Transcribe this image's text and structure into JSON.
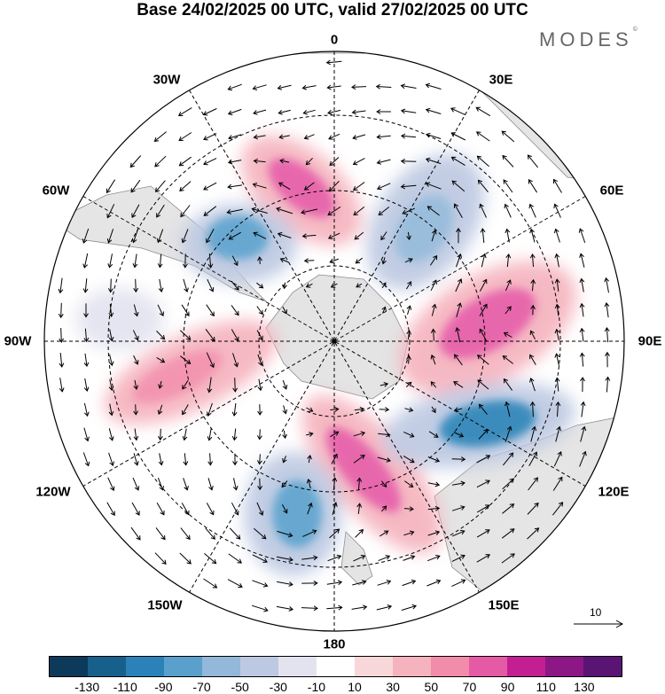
{
  "title": "Base 24/02/2025 00 UTC, valid 27/02/2025 00 UTC",
  "logo": "MODES",
  "logo_mark": "©",
  "longitude_labels": {
    "top": "0",
    "lon_30e": "30E",
    "lon_60e": "60E",
    "lon_90e": "90E",
    "lon_120e": "120E",
    "lon_150e": "150E",
    "bottom": "180",
    "lon_150w": "150W",
    "lon_120w": "120W",
    "lon_90w": "90W",
    "lon_60w": "60W",
    "lon_30w": "30W"
  },
  "reference_vector": "10",
  "colorbar": {
    "colors": [
      "#0d3a5a",
      "#17608c",
      "#2b82b8",
      "#5aa0cc",
      "#93b8d9",
      "#bdc9e2",
      "#e3e3f0",
      "#ffffff",
      "#f8d7d9",
      "#f5b3be",
      "#f28cab",
      "#e55aa5",
      "#c41e93",
      "#8c1785",
      "#5a1473"
    ],
    "tick_labels": [
      "-130",
      "-110",
      "-90",
      "-70",
      "-50",
      "-30",
      "-10",
      "10",
      "30",
      "50",
      "70",
      "90",
      "110",
      "130"
    ]
  }
}
